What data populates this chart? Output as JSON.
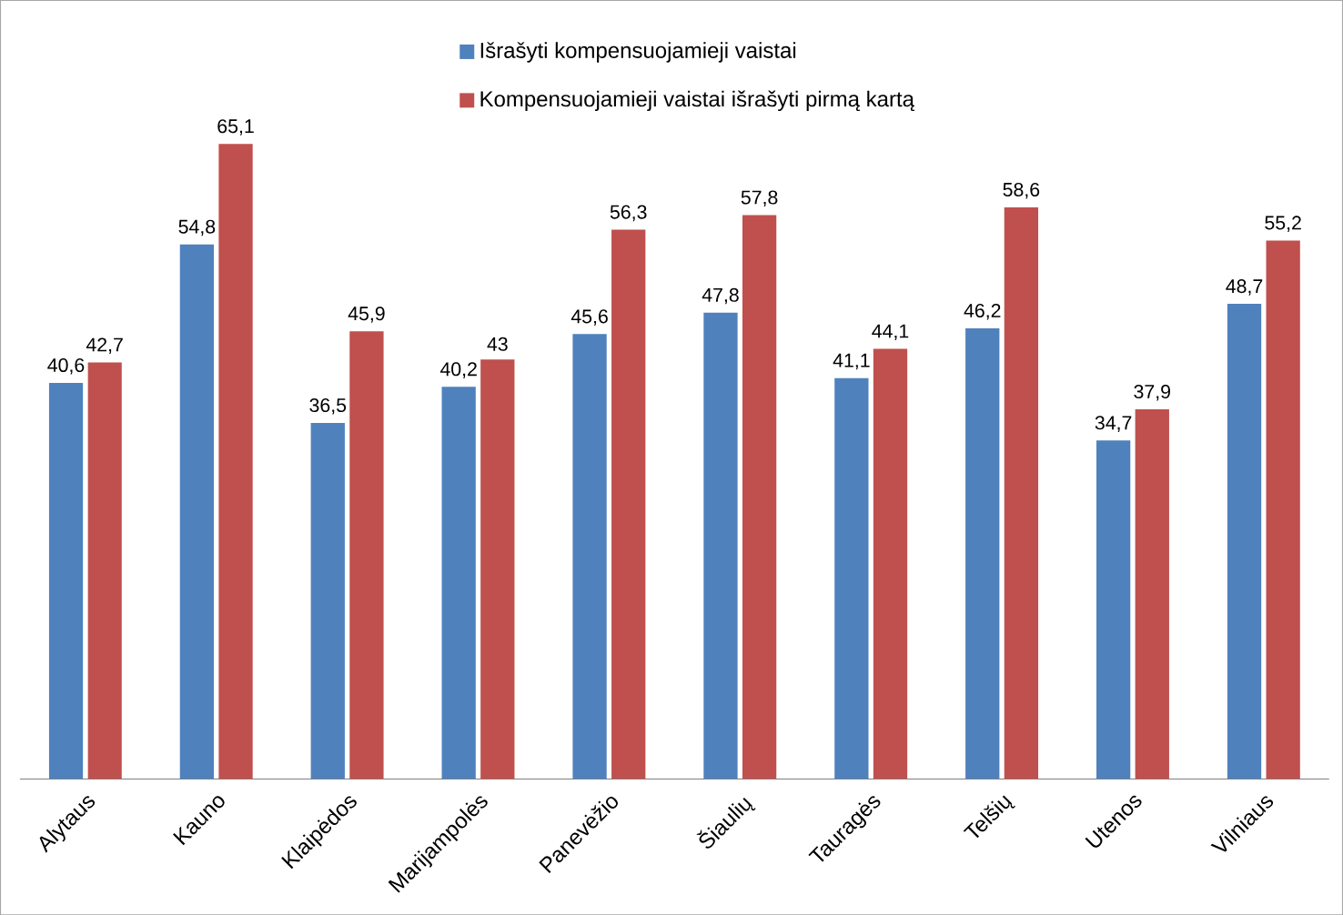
{
  "chart_data": {
    "type": "bar",
    "categories": [
      "Alytaus",
      "Kauno",
      "Klaipėdos",
      "Marijampolės",
      "Panevėžio",
      "Šiaulių",
      "Tauragės",
      "Telšių",
      "Utenos",
      "Vilniaus"
    ],
    "series": [
      {
        "name": "Išrašyti kompensuojamieji vaistai",
        "color": "#4f81bd",
        "values": [
          40.6,
          54.8,
          36.5,
          40.2,
          45.6,
          47.8,
          41.1,
          46.2,
          34.7,
          48.7
        ],
        "value_labels": [
          "40,6",
          "54,8",
          "36,5",
          "40,2",
          "45,6",
          "47,8",
          "41,1",
          "46,2",
          "34,7",
          "48,7"
        ]
      },
      {
        "name": "Kompensuojamieji vaistai išrašyti pirmą kartą",
        "color": "#c0504d",
        "values": [
          42.7,
          65.1,
          45.9,
          43,
          56.3,
          57.8,
          44.1,
          58.6,
          37.9,
          55.2
        ],
        "value_labels": [
          "42,7",
          "65,1",
          "45,9",
          "43",
          "56,3",
          "57,8",
          "44,1",
          "58,6",
          "37,9",
          "55,2"
        ]
      }
    ],
    "legend": "top"
  }
}
